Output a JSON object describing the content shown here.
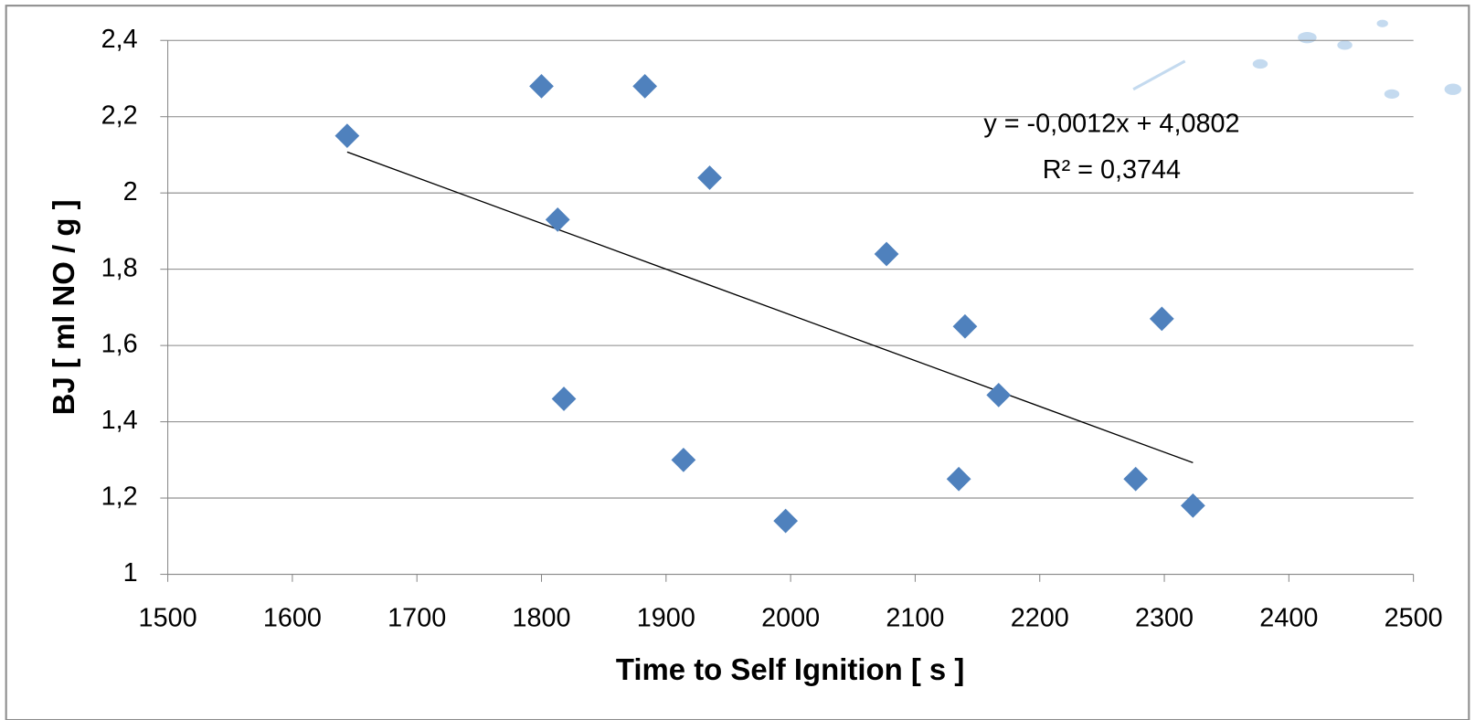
{
  "chart_data": {
    "type": "scatter",
    "x_label": "Time to Self Ignition [ s ]",
    "y_label": "BJ [ ml NO / g ]",
    "x": [
      1644,
      1800,
      1883,
      1935,
      1813,
      2077,
      2140,
      2298,
      1818,
      2167,
      1914,
      2135,
      2277,
      1996,
      2323
    ],
    "series": [
      {
        "color": "#4f81bd",
        "values": [
          2.15,
          2.28,
          2.28,
          2.04,
          1.93,
          1.84,
          1.65,
          1.67,
          1.46,
          1.47,
          1.3,
          1.25,
          1.25,
          1.14,
          1.18
        ]
      }
    ],
    "xlim": [
      1500,
      2500
    ],
    "xticks": [
      1500,
      1600,
      1700,
      1800,
      1900,
      2000,
      2100,
      2200,
      2300,
      2400,
      2500
    ],
    "ylim": [
      1,
      2.4
    ],
    "yticks": [
      1,
      {
        "value": 1.2,
        "label": "1,2"
      },
      {
        "value": 1.4,
        "label": "1,4"
      },
      {
        "value": 1.6,
        "label": "1,6"
      },
      {
        "value": 1.8,
        "label": "1,8"
      },
      2,
      {
        "value": 2.2,
        "label": "2,2"
      },
      {
        "value": 2.4,
        "label": "2,4"
      }
    ],
    "grid": true,
    "trendline": {
      "slope": -0.0012,
      "intercept": 4.0802,
      "equation": "y = -0,0012x + 4,0802",
      "r2": 0.3744,
      "r2_label": "R² = 0,3744",
      "color": "#000000"
    }
  }
}
